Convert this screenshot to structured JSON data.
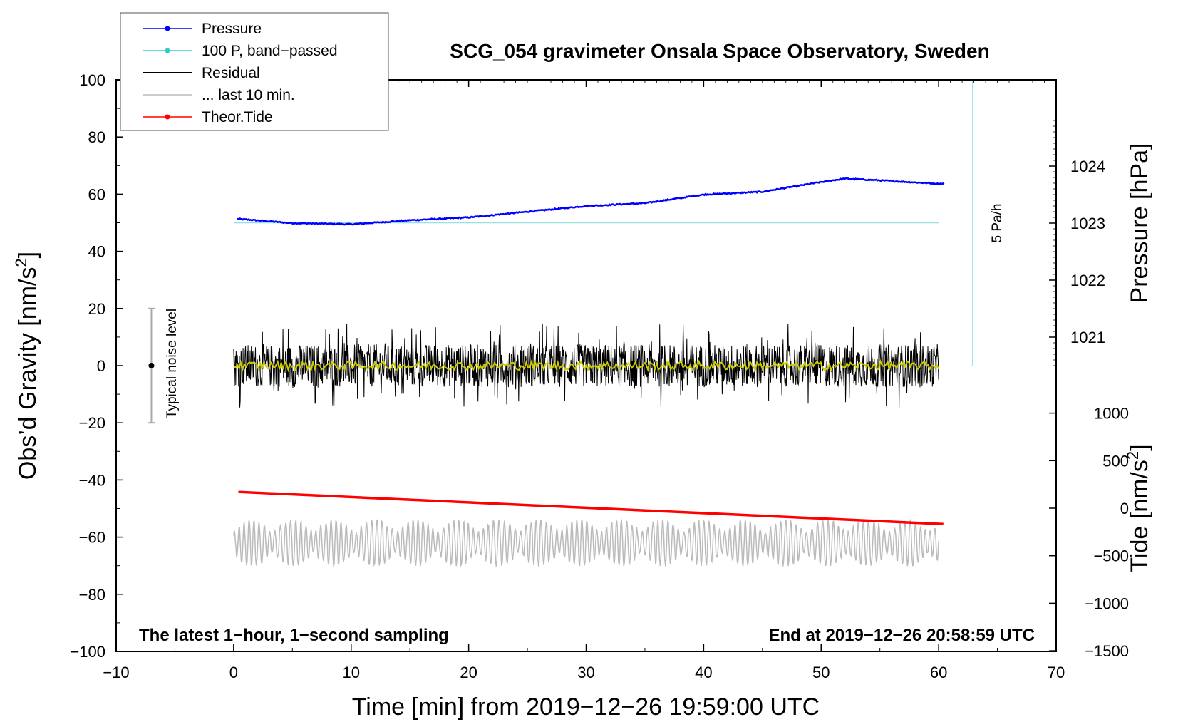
{
  "chart_data": {
    "type": "line",
    "title": "SCG_054 gravimeter Onsala Space Observatory, Sweden",
    "xlabel": "Time [min] from 2019−12−26 19:59:00 UTC",
    "ylabel_prefix": "Obs’d Gravity [nm/s",
    "ylabel_sup": "2",
    "ylabel_suffix": "]",
    "pressure_label": "Pressure [hPa]",
    "tide_label_prefix": "Tide [nm/s",
    "tide_label_sup": "2",
    "tide_label_suffix": "]",
    "xlim": [
      -10,
      70
    ],
    "ylim": [
      -100,
      100
    ],
    "x_ticks": [
      "−10",
      "0",
      "10",
      "20",
      "30",
      "40",
      "50",
      "60",
      "70"
    ],
    "y_ticks": [
      "−100",
      "−80",
      "−60",
      "−40",
      "−20",
      "0",
      "20",
      "40",
      "60",
      "80",
      "100"
    ],
    "pressure_ticks": [
      "1021",
      "1022",
      "1023",
      "1024"
    ],
    "tide_ticks": [
      "−1500",
      "−1000",
      "−500",
      "0",
      "500",
      "1000"
    ],
    "note_left": "The latest 1−hour, 1−second sampling",
    "note_right": "End at 2019−12−26 20:58:59 UTC",
    "noise_label": "Typical noise level",
    "noise_range": [
      -20,
      20
    ],
    "scale_label": "5 Pa/h",
    "legend": [
      {
        "label": "Pressure",
        "color": "#0000ff",
        "marker": true
      },
      {
        "label": "100 P, band−passed",
        "color": "#33cccc",
        "marker": true
      },
      {
        "label": "Residual",
        "color": "#000000",
        "marker": false
      },
      {
        "label": "... last 10 min.",
        "color": "#bbbbbb",
        "marker": false
      },
      {
        "label": "Theor.Tide",
        "color": "#ff0000",
        "marker": true
      }
    ],
    "series": [
      {
        "name": "Pressure",
        "unit": "hPa",
        "x": [
          0,
          5,
          10,
          15,
          20,
          25,
          30,
          35,
          40,
          45,
          50,
          52,
          55,
          60
        ],
        "values": [
          1023.08,
          1023.0,
          1022.98,
          1023.05,
          1023.1,
          1023.2,
          1023.3,
          1023.35,
          1023.5,
          1023.55,
          1023.72,
          1023.78,
          1023.75,
          1023.69
        ]
      },
      {
        "name": "100 P, band−passed",
        "unit": "nm/s2",
        "x": [
          0,
          60
        ],
        "values": [
          50,
          50
        ]
      },
      {
        "name": "Residual",
        "unit": "nm/s2",
        "x": [
          0,
          60
        ],
        "values": [
          0,
          0
        ],
        "noise_amplitude": 15
      },
      {
        "name": "... last 10 min.",
        "unit": "nm/s2",
        "x": [
          0,
          60
        ],
        "values": [
          -62,
          -62
        ],
        "noise_amplitude": 15
      },
      {
        "name": "Theor.Tide",
        "unit": "nm/s2",
        "x": [
          0,
          60
        ],
        "values": [
          171,
          -167
        ]
      }
    ]
  }
}
